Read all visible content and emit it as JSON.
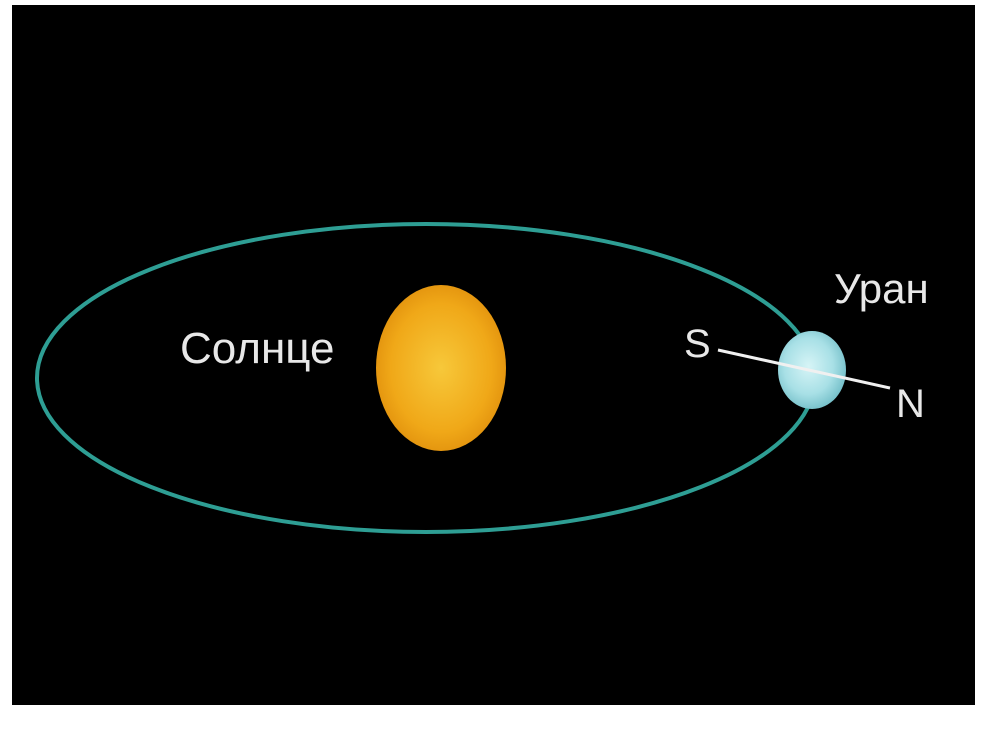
{
  "labels": {
    "sun": "Солнце",
    "planet": "Уран",
    "south": "S",
    "north": "N"
  }
}
